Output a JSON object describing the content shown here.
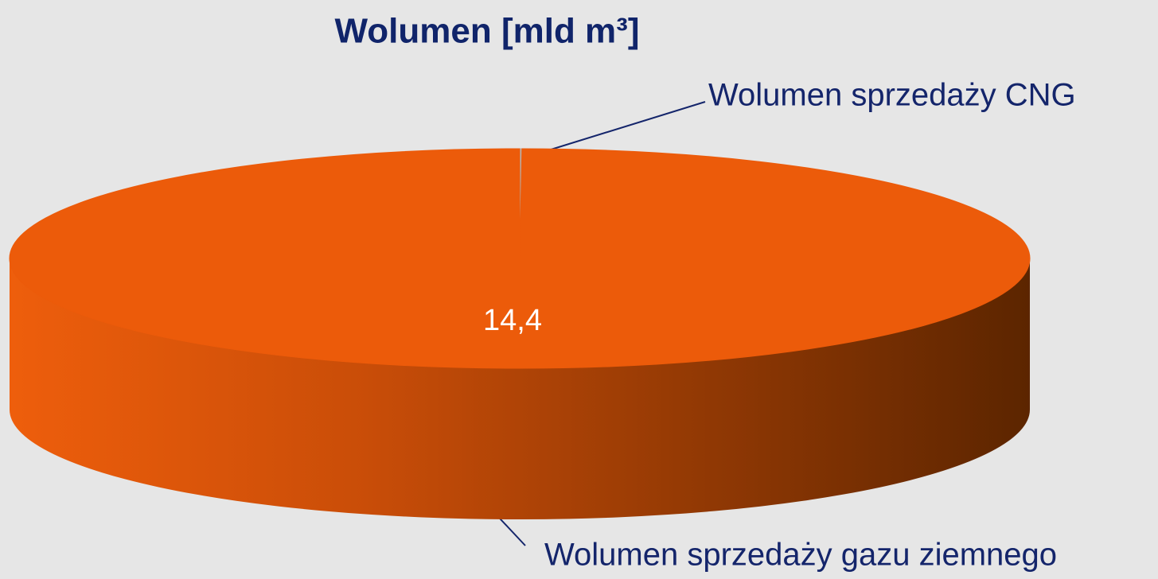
{
  "chart_data": {
    "type": "pie",
    "title": "Wolumen [mld m³]",
    "categories": [
      "Wolumen sprzedaży CNG",
      "Wolumen sprzedaży gazu ziemnego"
    ],
    "values": [
      0.01,
      14.4
    ],
    "value_labels": [
      null,
      "14,4"
    ],
    "colors": [
      "#b4b4b4",
      "#ec5b0a"
    ]
  }
}
